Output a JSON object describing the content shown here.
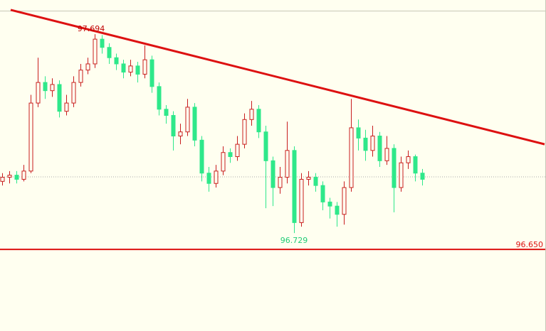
{
  "chart_data": {
    "type": "candlestick",
    "ylim": [
      96.254,
      97.86
    ],
    "up_color": "#c81e1e",
    "down_color": "#2ee88a",
    "open": [
      96.98,
      97.0,
      97.01,
      96.99,
      97.03,
      97.36,
      97.46,
      97.42,
      97.45,
      97.32,
      97.36,
      97.46,
      97.52,
      97.55,
      97.67,
      97.63,
      97.58,
      97.55,
      97.51,
      97.54,
      97.5,
      97.57,
      97.44,
      97.33,
      97.3,
      97.2,
      97.22,
      97.34,
      97.18,
      97.02,
      96.97,
      97.03,
      97.12,
      97.1,
      97.16,
      97.28,
      97.33,
      97.22,
      97.08,
      96.95,
      97.0,
      97.13,
      96.78,
      96.99,
      97.0,
      96.96,
      96.88,
      96.86,
      96.82,
      96.95,
      97.24,
      97.19,
      97.13,
      97.2,
      97.08,
      97.14,
      96.95,
      97.07,
      97.1,
      97.02
    ],
    "high": [
      97.02,
      97.03,
      97.03,
      97.06,
      97.4,
      97.58,
      97.49,
      97.48,
      97.47,
      97.4,
      97.49,
      97.55,
      97.58,
      97.694,
      97.69,
      97.65,
      97.6,
      97.57,
      97.57,
      97.56,
      97.64,
      97.59,
      97.46,
      97.35,
      97.32,
      97.26,
      97.38,
      97.36,
      97.2,
      97.05,
      97.06,
      97.15,
      97.14,
      97.2,
      97.31,
      97.37,
      97.35,
      97.25,
      97.1,
      97.05,
      97.27,
      97.15,
      97.02,
      97.03,
      97.02,
      96.98,
      96.9,
      96.88,
      96.98,
      97.38,
      97.28,
      97.23,
      97.25,
      97.22,
      97.2,
      97.16,
      97.1,
      97.13,
      97.11,
      97.04
    ],
    "low": [
      96.96,
      96.97,
      96.97,
      96.98,
      97.02,
      97.34,
      97.38,
      97.39,
      97.29,
      97.3,
      97.34,
      97.44,
      97.5,
      97.53,
      97.6,
      97.55,
      97.52,
      97.48,
      97.49,
      97.46,
      97.48,
      97.41,
      97.3,
      97.26,
      97.13,
      97.16,
      97.2,
      97.15,
      96.98,
      96.93,
      96.95,
      97.01,
      97.07,
      97.08,
      97.14,
      97.25,
      97.19,
      96.85,
      96.86,
      96.92,
      96.97,
      96.729,
      96.76,
      96.96,
      96.93,
      96.84,
      96.8,
      96.76,
      96.77,
      96.93,
      97.13,
      97.08,
      97.1,
      97.05,
      97.06,
      96.83,
      96.93,
      97.04,
      96.98,
      96.96
    ],
    "close": [
      97.0,
      97.01,
      96.99,
      97.03,
      97.36,
      97.46,
      97.42,
      97.45,
      97.32,
      97.36,
      97.46,
      97.52,
      97.55,
      97.67,
      97.63,
      97.58,
      97.55,
      97.51,
      97.54,
      97.5,
      97.57,
      97.44,
      97.33,
      97.3,
      97.2,
      97.22,
      97.34,
      97.18,
      97.02,
      96.97,
      97.03,
      97.12,
      97.1,
      97.16,
      97.28,
      97.33,
      97.22,
      97.08,
      96.95,
      97.0,
      97.13,
      96.78,
      96.99,
      97.0,
      96.96,
      96.88,
      96.86,
      96.82,
      96.95,
      97.24,
      97.19,
      97.13,
      97.2,
      97.08,
      97.14,
      96.95,
      97.07,
      97.1,
      97.02,
      96.99
    ],
    "high_mark": {
      "value": 97.694,
      "color": "#c00000"
    },
    "low_mark": {
      "value": 96.729,
      "color": "#22cc77"
    },
    "trendline": {
      "start": [
        1.2,
        97.812
      ],
      "end": [
        76.2,
        97.16
      ],
      "color": "#dd1111"
    },
    "support": {
      "value": 96.65,
      "label": "96.650",
      "color": "#dd1111"
    },
    "bid_line": {
      "value": 97.002,
      "color": "#aaaaaa"
    }
  }
}
